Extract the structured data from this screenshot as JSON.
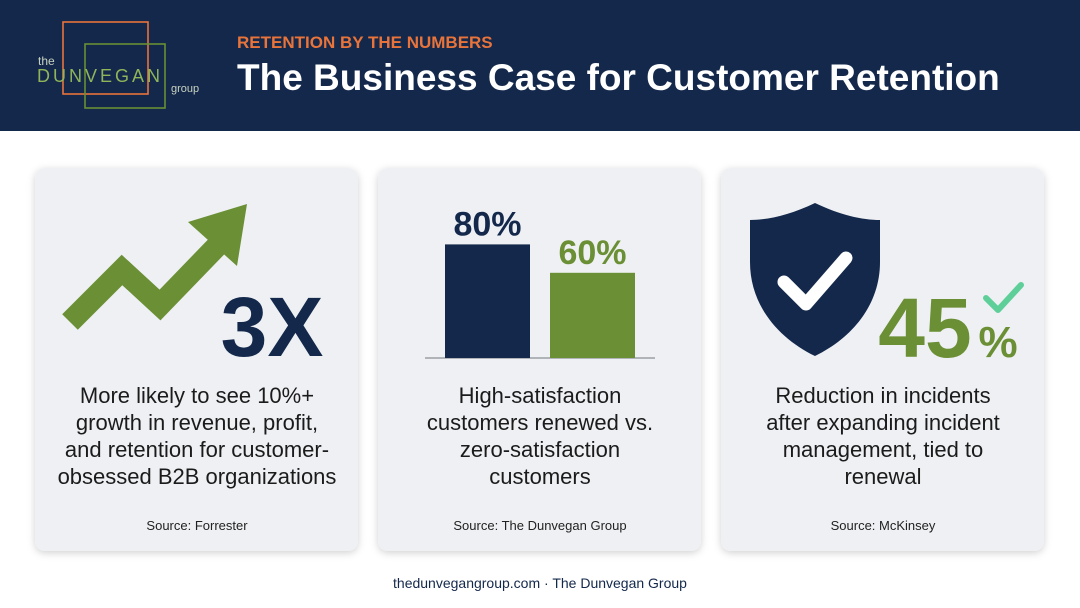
{
  "header": {
    "kicker": "RETENTION BY THE NUMBERS",
    "title": "The Business Case for Customer Retention",
    "logo": {
      "the": "the",
      "name": "DUNVEGAN",
      "group": "group"
    }
  },
  "cards": [
    {
      "stat": "3X",
      "description": [
        "More likely to see 10%+",
        "growth in revenue, profit,",
        "and retention for customer-",
        "obsessed B2B organizations"
      ],
      "source": "Source: Forrester"
    },
    {
      "chart_data": {
        "type": "bar",
        "values": [
          80,
          60
        ],
        "value_labels": [
          "80%",
          "60%"
        ],
        "colors": [
          "#13284b",
          "#6a8f34"
        ]
      },
      "description": [
        "High-satisfaction",
        "customers renewed vs.",
        "zero-satisfaction",
        "customers"
      ],
      "source": "Source: The Dunvegan Group"
    },
    {
      "stat_number": "45",
      "stat_unit": "%",
      "description": [
        "Reduction in incidents",
        "after expanding incident",
        "management, tied to",
        "renewal"
      ],
      "source": "Source: McKinsey"
    }
  ],
  "footer": "thedunvegangroup.com · The Dunvegan Group"
}
